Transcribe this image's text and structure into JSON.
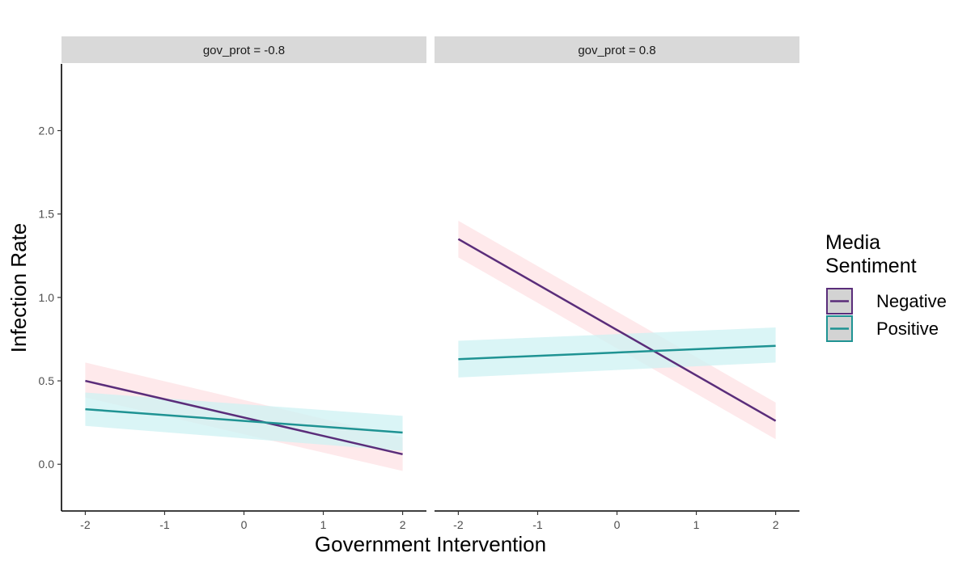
{
  "chart_data": {
    "type": "line",
    "xlabel": "Government Intervention",
    "ylabel": "Infection Rate",
    "xlim": [
      -2.3,
      2.3
    ],
    "ylim": [
      -0.28,
      2.4
    ],
    "x_ticks": [
      -2,
      -1,
      0,
      1,
      2
    ],
    "x_tick_labels": [
      "-2",
      "-1",
      "0",
      "1",
      "2"
    ],
    "y_ticks": [
      0,
      0.5,
      1,
      1.5,
      2
    ],
    "y_tick_labels": [
      "0.0",
      "0.5",
      "1.0",
      "1.5",
      "2.0"
    ],
    "legend": {
      "title_lines": [
        "Media",
        "Sentiment"
      ],
      "placement": "right"
    },
    "grid": false,
    "colors": {
      "Negative": {
        "line": "#5a2d7a",
        "ribbon": "#fde2e4"
      },
      "Positive": {
        "line": "#1f9393",
        "ribbon": "#cdf1f3"
      },
      "strip_bg": "#d9d9d9",
      "legend_key_bg": "#d3d3d3"
    },
    "panels": [
      {
        "strip": "gov_prot = -0.8",
        "series": [
          {
            "name": "Negative",
            "x": [
              -2,
              2
            ],
            "y": [
              0.5,
              0.06
            ],
            "ymin": [
              0.4,
              -0.04
            ],
            "ymax": [
              0.61,
              0.16
            ]
          },
          {
            "name": "Positive",
            "x": [
              -2,
              2
            ],
            "y": [
              0.33,
              0.19
            ],
            "ymin": [
              0.23,
              0.08
            ],
            "ymax": [
              0.43,
              0.29
            ]
          }
        ]
      },
      {
        "strip": "gov_prot = 0.8",
        "series": [
          {
            "name": "Negative",
            "x": [
              -2,
              2
            ],
            "y": [
              1.35,
              0.26
            ],
            "ymin": [
              1.24,
              0.15
            ],
            "ymax": [
              1.46,
              0.37
            ]
          },
          {
            "name": "Positive",
            "x": [
              -2,
              2
            ],
            "y": [
              0.63,
              0.71
            ],
            "ymin": [
              0.52,
              0.61
            ],
            "ymax": [
              0.74,
              0.82
            ]
          }
        ]
      }
    ]
  }
}
